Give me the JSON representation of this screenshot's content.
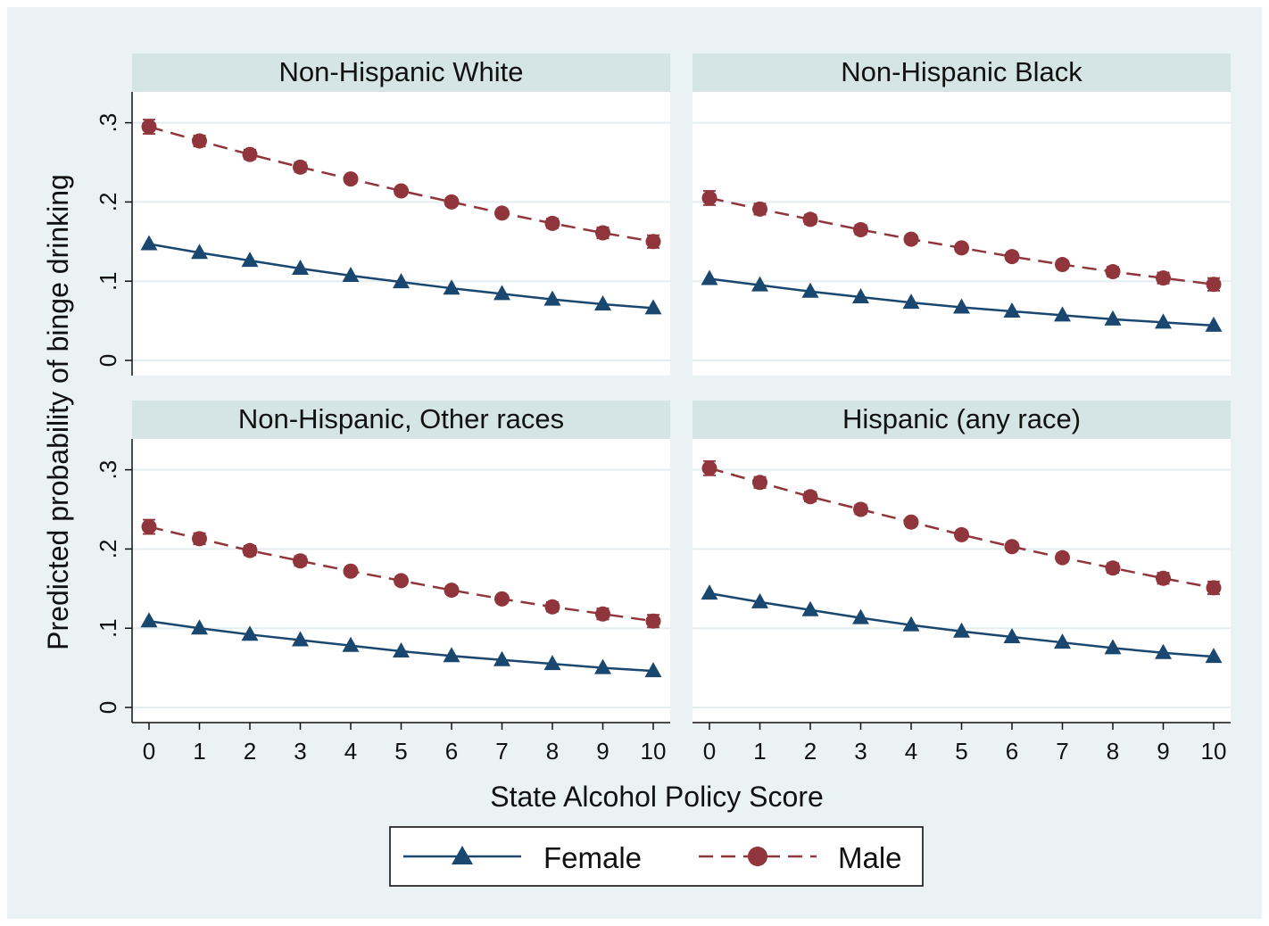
{
  "chart_data": {
    "type": "line",
    "panels": [
      {
        "title": "Non-Hispanic White",
        "series": [
          {
            "name": "Female",
            "values": [
              0.147,
              0.136,
              0.126,
              0.116,
              0.107,
              0.099,
              0.091,
              0.084,
              0.077,
              0.071,
              0.066
            ]
          },
          {
            "name": "Male",
            "values": [
              0.295,
              0.277,
              0.26,
              0.244,
              0.229,
              0.214,
              0.2,
              0.186,
              0.173,
              0.161,
              0.15
            ]
          }
        ]
      },
      {
        "title": "Non-Hispanic Black",
        "series": [
          {
            "name": "Female",
            "values": [
              0.103,
              0.095,
              0.087,
              0.08,
              0.073,
              0.067,
              0.062,
              0.057,
              0.052,
              0.048,
              0.044
            ]
          },
          {
            "name": "Male",
            "values": [
              0.205,
              0.191,
              0.178,
              0.165,
              0.153,
              0.142,
              0.131,
              0.121,
              0.112,
              0.104,
              0.096
            ]
          }
        ]
      },
      {
        "title": "Non-Hispanic, Other races",
        "series": [
          {
            "name": "Female",
            "values": [
              0.109,
              0.1,
              0.092,
              0.085,
              0.078,
              0.071,
              0.065,
              0.06,
              0.055,
              0.05,
              0.046
            ]
          },
          {
            "name": "Male",
            "values": [
              0.228,
              0.213,
              0.198,
              0.185,
              0.172,
              0.16,
              0.148,
              0.137,
              0.127,
              0.118,
              0.109
            ]
          }
        ]
      },
      {
        "title": "Hispanic (any race)",
        "series": [
          {
            "name": "Female",
            "values": [
              0.144,
              0.133,
              0.123,
              0.113,
              0.104,
              0.096,
              0.089,
              0.082,
              0.075,
              0.069,
              0.064
            ]
          },
          {
            "name": "Male",
            "values": [
              0.302,
              0.284,
              0.266,
              0.25,
              0.234,
              0.218,
              0.203,
              0.189,
              0.176,
              0.163,
              0.151
            ]
          }
        ]
      }
    ],
    "x": [
      0,
      1,
      2,
      3,
      4,
      5,
      6,
      7,
      8,
      9,
      10
    ],
    "x_ticks": [
      "0",
      "1",
      "2",
      "3",
      "4",
      "5",
      "6",
      "7",
      "8",
      "9",
      "10"
    ],
    "y_ticks": [
      {
        "value": 0,
        "label": "0"
      },
      {
        "value": 0.1,
        "label": ".1"
      },
      {
        "value": 0.2,
        "label": ".2"
      },
      {
        "value": 0.3,
        "label": ".3"
      }
    ],
    "xlabel": "State Alcohol Policy Score",
    "ylabel": "Predicted probability of binge drinking",
    "xlim": [
      0,
      10
    ],
    "ylim": [
      0,
      0.3
    ],
    "grid": true,
    "legend": {
      "position": "bottom-center",
      "entries": [
        "Female",
        "Male"
      ]
    },
    "colors": {
      "female": "#1a476f",
      "male": "#90353b",
      "strip": "#d5e4e4",
      "background": "#eaf2f3",
      "plot": "#ffffff",
      "grid": "#e4eef0"
    },
    "markers": {
      "Female": "triangle",
      "Male": "circle"
    },
    "error_bars": true
  }
}
